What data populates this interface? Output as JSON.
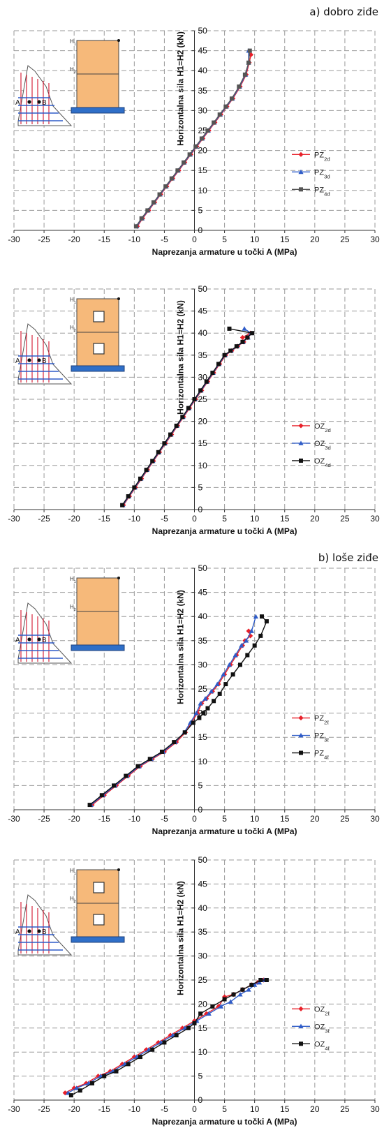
{
  "sections": {
    "a": "a) dobro ziđe",
    "b": "b) loše ziđe"
  },
  "chart_data": [
    {
      "type": "line",
      "ylabel": "Horizontalna sila H1=H2 (kN)",
      "xlabel": "Naprezanja armature u točki A  (MPa)",
      "xlim": [
        -30,
        30
      ],
      "ylim": [
        0,
        50
      ],
      "xticks": [
        -30,
        -25,
        -20,
        -15,
        -10,
        -5,
        0,
        5,
        10,
        15,
        20,
        25,
        30
      ],
      "yticks": [
        0,
        5,
        10,
        15,
        20,
        25,
        30,
        35,
        40,
        45,
        50
      ],
      "grid": true,
      "legend_position": "right",
      "inset": {
        "h1": "H1",
        "h2": "H2",
        "point_a": "A",
        "point_b": "B",
        "openings": 0
      },
      "series": [
        {
          "name": "PZ2d",
          "base": "PZ",
          "sub": "2d",
          "color": "#e8202a",
          "marker": "diamond",
          "x": [
            -9.5,
            -8.6,
            -7.6,
            -6.6,
            -5.6,
            -4.6,
            -3.6,
            -2.6,
            -1.6,
            -0.6,
            0.4,
            1.4,
            2.4,
            3.4,
            4.4,
            5.4,
            6.4,
            7.6,
            8.6,
            9.1,
            9.4
          ],
          "y": [
            1,
            3,
            5,
            7,
            9,
            11,
            13,
            15,
            17,
            19,
            21,
            23,
            25,
            27,
            29,
            31,
            33,
            36,
            39,
            42,
            44
          ]
        },
        {
          "name": "PZ3d",
          "base": "PZ",
          "sub": "3d",
          "color": "#2f5cc8",
          "marker": "triangle",
          "x": [
            -9.6,
            -8.7,
            -7.7,
            -6.7,
            -5.7,
            -4.7,
            -3.7,
            -2.7,
            -1.7,
            -0.7,
            0.3,
            1.3,
            2.3,
            3.3,
            4.3,
            5.3,
            6.3,
            7.5,
            8.5,
            9.0,
            9.0
          ],
          "y": [
            1,
            3,
            5,
            7,
            9,
            11,
            13,
            15,
            17,
            19,
            21,
            23,
            25,
            27,
            29,
            31,
            33,
            36,
            39,
            42,
            45
          ]
        },
        {
          "name": "PZ4d",
          "base": "PZ",
          "sub": "4d",
          "color": "#555555",
          "marker": "square",
          "x": [
            -9.7,
            -8.8,
            -7.8,
            -6.8,
            -5.8,
            -4.8,
            -3.8,
            -2.8,
            -1.8,
            -0.8,
            0.2,
            1.2,
            2.2,
            3.2,
            4.2,
            5.2,
            6.2,
            7.4,
            8.4,
            9.0,
            9.2
          ],
          "y": [
            1,
            3,
            5,
            7,
            9,
            11,
            13,
            15,
            17,
            19,
            21,
            23,
            25,
            27,
            29,
            31,
            33,
            36,
            39,
            42,
            45
          ]
        }
      ]
    },
    {
      "type": "line",
      "ylabel": "Horizontalna sila H1=H2 (kN)",
      "xlabel": "Naprezanja armature  u točki A  (MPa)",
      "xlim": [
        -30,
        30
      ],
      "ylim": [
        0,
        50
      ],
      "xticks": [
        -30,
        -25,
        -20,
        -15,
        -10,
        -5,
        0,
        5,
        10,
        15,
        20,
        25,
        30
      ],
      "yticks": [
        0,
        5,
        10,
        15,
        20,
        25,
        30,
        35,
        40,
        45,
        50
      ],
      "grid": true,
      "legend_position": "right",
      "inset": {
        "h1": "H1",
        "h2": "H2",
        "point_a": "A",
        "point_b": "B",
        "openings": 2
      },
      "series": [
        {
          "name": "OZ2d",
          "base": "OZ",
          "sub": "2d",
          "color": "#e8202a",
          "marker": "diamond",
          "x": [
            -11.8,
            -10.8,
            -9.8,
            -8.8,
            -7.8,
            -6.8,
            -5.8,
            -4.8,
            -3.8,
            -2.8,
            -1.8,
            -0.8,
            0.2,
            1.2,
            2.2,
            3.2,
            4.2,
            5.2,
            6.2,
            7.2,
            8.2,
            8.8,
            9.3,
            8.0
          ],
          "y": [
            1,
            3,
            5,
            7,
            9,
            11,
            13,
            15,
            17,
            19,
            21,
            23,
            25,
            27,
            29,
            31,
            33,
            35,
            36,
            37,
            38,
            39,
            40,
            39
          ]
        },
        {
          "name": "OZ3d",
          "base": "OZ",
          "sub": "3d",
          "color": "#2f5cc8",
          "marker": "triangle",
          "x": [
            -11.9,
            -10.9,
            -9.9,
            -8.9,
            -7.9,
            -6.9,
            -5.9,
            -4.9,
            -3.9,
            -2.9,
            -1.9,
            -0.9,
            0.1,
            1.1,
            2.1,
            3.1,
            4.1,
            5.1,
            6.1,
            7.1,
            8.1,
            8.9,
            9.4,
            8.3
          ],
          "y": [
            1,
            3,
            5,
            7,
            9,
            11,
            13,
            15,
            17,
            19,
            21,
            23,
            25,
            27,
            29,
            31,
            33,
            35,
            36,
            37,
            38,
            39,
            40,
            41
          ]
        },
        {
          "name": "OZ4d",
          "base": "OZ",
          "sub": "4d",
          "color": "#111111",
          "marker": "square",
          "x": [
            -12.0,
            -11.0,
            -10.0,
            -9.0,
            -8.0,
            -7.0,
            -6.0,
            -5.0,
            -4.0,
            -3.0,
            -2.0,
            -1.0,
            0.0,
            1.0,
            2.0,
            3.0,
            4.0,
            5.0,
            6.0,
            7.0,
            8.0,
            8.8,
            9.6,
            5.8
          ],
          "y": [
            1,
            3,
            5,
            7,
            9,
            11,
            13,
            15,
            17,
            19,
            21,
            23,
            25,
            27,
            29,
            31,
            33,
            35,
            36,
            37,
            38,
            39,
            40,
            41
          ]
        }
      ]
    },
    {
      "type": "line",
      "ylabel": "Horizontalna sila H1=H2 (kN)",
      "xlabel": "Naprezanja armature u točki A (MPa)",
      "xlim": [
        -30,
        30
      ],
      "ylim": [
        0,
        50
      ],
      "xticks": [
        -30,
        -25,
        -20,
        -15,
        -10,
        -5,
        0,
        5,
        10,
        15,
        20,
        25,
        30
      ],
      "yticks": [
        0,
        5,
        10,
        15,
        20,
        25,
        30,
        35,
        40,
        45,
        50
      ],
      "grid": true,
      "legend_position": "right",
      "inset": {
        "h1": "H1",
        "h2": "H2",
        "point_a": "A",
        "point_b": "B",
        "openings": 0
      },
      "series": [
        {
          "name": "PZ2ℓ",
          "base": "PZ",
          "sub": "2ℓ",
          "color": "#e8202a",
          "marker": "diamond",
          "x": [
            -17.0,
            -15.0,
            -13.0,
            -11.0,
            -9.0,
            -7.0,
            -5.0,
            -3.0,
            -1.5,
            -0.5,
            0.5,
            1.2,
            2.0,
            3.0,
            4.0,
            5.0,
            6.0,
            7.0,
            8.0,
            8.4,
            9.3,
            9.0
          ],
          "y": [
            1,
            3,
            5,
            7,
            9,
            10.5,
            12,
            14,
            16,
            18,
            20,
            22,
            23,
            24.5,
            26,
            28,
            30,
            32,
            34,
            35,
            36,
            37
          ]
        },
        {
          "name": "PZ3ℓ",
          "base": "PZ",
          "sub": "3ℓ",
          "color": "#2f5cc8",
          "marker": "triangle",
          "x": [
            -17.2,
            -15.2,
            -13.2,
            -11.2,
            -9.2,
            -7.2,
            -5.2,
            -3.2,
            -1.7,
            -0.7,
            0.3,
            1.0,
            1.8,
            2.8,
            3.8,
            4.8,
            5.8,
            6.8,
            7.8,
            8.6,
            9.5,
            10.2
          ],
          "y": [
            1,
            3,
            5,
            7,
            9,
            10.5,
            12,
            14,
            16,
            18,
            20,
            22,
            23,
            24.5,
            26,
            28,
            30,
            32,
            34,
            35,
            37,
            40
          ]
        },
        {
          "name": "PZ4ℓ",
          "base": "PZ",
          "sub": "4ℓ",
          "color": "#111111",
          "marker": "square",
          "x": [
            -17.4,
            -15.4,
            -13.4,
            -11.4,
            -9.4,
            -7.4,
            -5.4,
            -3.4,
            -1.6,
            -0.2,
            0.8,
            1.5,
            2.2,
            3.2,
            4.2,
            5.2,
            6.4,
            7.6,
            8.8,
            10.0,
            11.0,
            12.0,
            11.2
          ],
          "y": [
            1,
            3,
            5,
            7,
            9,
            10.5,
            12,
            14,
            16,
            18,
            19,
            20,
            21,
            22.5,
            24,
            26,
            28,
            30,
            32,
            34,
            36,
            39,
            40
          ]
        }
      ]
    },
    {
      "type": "line",
      "ylabel": "Horizontalna sila H1=H2 (kN)",
      "xlabel": "Naprezanja armature u točki A  (MPa)",
      "xlim": [
        -30,
        30
      ],
      "ylim": [
        0,
        50
      ],
      "xticks": [
        -30,
        -25,
        -20,
        -15,
        -10,
        -5,
        0,
        5,
        10,
        15,
        20,
        25,
        30
      ],
      "yticks": [
        0,
        5,
        10,
        15,
        20,
        25,
        30,
        35,
        40,
        45,
        50
      ],
      "grid": true,
      "legend_position": "right",
      "inset": {
        "h1": "H1",
        "h2": "H2",
        "point_a": "A",
        "point_b": "B",
        "openings": 2
      },
      "series": [
        {
          "name": "OZ2ℓ",
          "base": "OZ",
          "sub": "2ℓ",
          "color": "#e8202a",
          "marker": "diamond",
          "x": [
            -21.5,
            -20.0,
            -18.0,
            -16.0,
            -14.0,
            -12.0,
            -10.0,
            -8.0,
            -6.0,
            -4.0,
            -2.0,
            0.0,
            2.0,
            4.0,
            5.0,
            6.5,
            8.0,
            9.5,
            10.5,
            11.5
          ],
          "y": [
            1.5,
            2.5,
            3.5,
            5,
            6,
            7.5,
            9,
            10.5,
            12,
            13.5,
            15,
            16.5,
            18,
            19.5,
            21.5,
            22,
            23,
            24,
            24.5,
            25
          ]
        },
        {
          "name": "OZ3ℓ",
          "base": "OZ",
          "sub": "3ℓ",
          "color": "#2f5cc8",
          "marker": "triangle",
          "x": [
            -21.0,
            -19.6,
            -17.6,
            -15.6,
            -13.6,
            -11.6,
            -9.6,
            -7.6,
            -5.6,
            -3.6,
            -1.6,
            0.4,
            2.4,
            4.4,
            6.0,
            7.6,
            9.0,
            10.0,
            10.8,
            11.6
          ],
          "y": [
            1.5,
            2.5,
            3.5,
            5,
            6,
            7.5,
            9,
            10.5,
            12,
            13.5,
            15,
            16.5,
            18,
            19.5,
            20.5,
            22,
            23,
            24,
            24.5,
            25
          ]
        },
        {
          "name": "OZ4ℓ",
          "base": "OZ",
          "sub": "4ℓ",
          "color": "#111111",
          "marker": "square",
          "x": [
            -20.5,
            -19.0,
            -17.0,
            -15.0,
            -13.0,
            -11.0,
            -9.0,
            -7.0,
            -5.0,
            -3.0,
            -1.0,
            0.0,
            1.0,
            3.0,
            5.0,
            6.5,
            8.0,
            9.5,
            11.0,
            12.0
          ],
          "y": [
            1,
            2,
            3.5,
            5,
            6,
            7.5,
            9,
            10.5,
            12,
            13.5,
            15,
            16,
            18,
            19.5,
            21,
            22,
            23,
            24,
            25,
            25
          ]
        }
      ]
    }
  ]
}
